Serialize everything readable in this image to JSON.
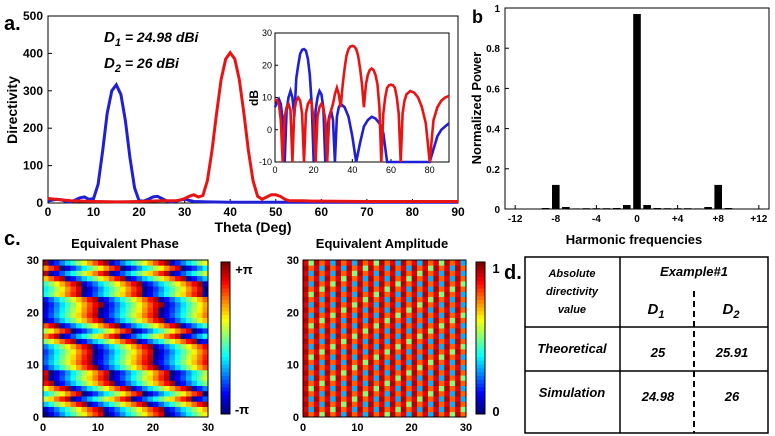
{
  "panel_labels": {
    "a": "a.",
    "b": "b",
    "c": "c.",
    "d": "d."
  },
  "colors": {
    "series1": "#1f1fd6",
    "series2": "#e81414",
    "bar": "#000000"
  },
  "chart_data": [
    {
      "id": "a",
      "type": "line",
      "title": "",
      "xlabel": "Theta (Deg)",
      "ylabel": "Directivity",
      "xlim": [
        0,
        90
      ],
      "ylim": [
        0,
        500
      ],
      "xticks": [
        "0",
        "10",
        "20",
        "30",
        "40",
        "50",
        "60",
        "70",
        "80",
        "90"
      ],
      "yticks": [
        "0",
        "100",
        "200",
        "300",
        "400",
        "500"
      ],
      "annotations": {
        "d1_sym": "D",
        "d1_sub": "1",
        "d1_val": " = 24.98 dBi",
        "d2_sym": "D",
        "d2_sub": "2",
        "d2_val": " = 26 dBi"
      },
      "series": [
        {
          "name": "D1",
          "color": "#1f1fd6",
          "x": [
            0,
            1,
            2,
            3,
            4,
            5,
            6,
            7,
            8,
            9,
            10,
            11,
            12,
            13,
            14,
            15,
            16,
            17,
            18,
            19,
            20,
            21,
            22,
            23,
            24,
            25,
            26,
            27,
            28,
            30,
            32,
            35,
            40,
            50,
            60,
            70,
            80,
            90
          ],
          "y": [
            5,
            8,
            10,
            8,
            4,
            3,
            8,
            14,
            16,
            10,
            12,
            50,
            140,
            240,
            300,
            316,
            290,
            220,
            120,
            40,
            6,
            5,
            10,
            16,
            18,
            12,
            6,
            3,
            5,
            10,
            4,
            3,
            2,
            2,
            2,
            2,
            2,
            2
          ]
        },
        {
          "name": "D2",
          "color": "#e81414",
          "x": [
            0,
            5,
            10,
            15,
            20,
            25,
            28,
            29,
            30,
            31,
            32,
            33,
            34,
            35,
            36,
            37,
            38,
            39,
            40,
            41,
            42,
            43,
            44,
            45,
            46,
            47,
            48,
            49,
            50,
            51,
            52,
            53,
            54,
            56,
            58,
            60,
            70,
            80,
            90
          ],
          "y": [
            12,
            6,
            4,
            3,
            4,
            6,
            6,
            8,
            12,
            18,
            22,
            16,
            20,
            60,
            140,
            240,
            330,
            385,
            402,
            385,
            330,
            240,
            140,
            60,
            18,
            10,
            16,
            22,
            22,
            18,
            10,
            6,
            6,
            6,
            5,
            5,
            4,
            4,
            4
          ]
        }
      ]
    },
    {
      "id": "a-inset",
      "type": "line",
      "ylabel": "dB",
      "xlim": [
        0,
        90
      ],
      "ylim": [
        -10,
        30
      ],
      "xticks": [
        "0",
        "20",
        "40",
        "60",
        "80"
      ],
      "yticks": [
        "-10",
        "0",
        "10",
        "20",
        "30"
      ],
      "series": [
        {
          "name": "D1",
          "color": "#1f1fd6",
          "x": [
            0,
            1,
            2,
            3,
            4,
            5,
            6,
            7,
            8,
            9,
            10,
            11,
            12,
            13,
            14,
            15,
            16,
            17,
            18,
            19,
            20,
            21,
            22,
            23,
            24,
            25,
            26,
            27,
            28,
            29,
            30,
            31,
            32,
            33,
            34,
            36,
            38,
            40,
            42,
            44,
            46,
            48,
            50,
            52,
            54,
            56,
            58,
            60,
            62,
            64,
            66,
            68,
            70,
            72,
            74,
            76,
            78,
            80,
            82,
            84,
            86,
            88,
            90
          ],
          "y": [
            7,
            8.5,
            9.5,
            8,
            3,
            -10,
            6,
            10,
            12,
            10,
            4,
            16,
            20,
            23.5,
            24.8,
            25,
            24.5,
            22,
            17,
            8,
            -10,
            6,
            10,
            12,
            11,
            7,
            -10,
            0,
            4,
            6,
            3,
            -10,
            4,
            7,
            8,
            7,
            4,
            -2,
            -10,
            -4,
            1,
            3,
            4,
            3.5,
            2,
            -1,
            -10,
            -10,
            -10,
            -10,
            -10,
            -10,
            -10,
            -10,
            -10,
            -10,
            -10,
            -10,
            -6,
            -2,
            0,
            1,
            2
          ]
        },
        {
          "name": "D2",
          "color": "#e81414",
          "x": [
            0,
            1,
            2,
            3,
            4,
            5,
            6,
            7,
            8,
            9,
            10,
            11,
            12,
            13,
            14,
            15,
            16,
            17,
            18,
            19,
            20,
            21,
            22,
            23,
            24,
            25,
            26,
            27,
            28,
            29,
            30,
            31,
            32,
            33,
            34,
            35,
            36,
            37,
            38,
            39,
            40,
            41,
            42,
            43,
            44,
            45,
            46,
            47,
            48,
            49,
            50,
            51,
            52,
            53,
            54,
            55,
            56,
            57,
            58,
            59,
            60,
            61,
            62,
            63,
            64,
            65,
            66,
            67,
            68,
            70,
            72,
            74,
            76,
            78,
            80,
            82,
            84,
            86,
            88,
            90
          ],
          "y": [
            9,
            9.3,
            8,
            3,
            -10,
            4,
            7,
            8,
            6,
            -10,
            6,
            9,
            10,
            9,
            5,
            -10,
            5,
            8,
            9,
            8,
            3,
            -10,
            4,
            7,
            8,
            7,
            3,
            -10,
            3,
            6,
            8,
            11,
            13,
            11,
            7,
            14,
            19,
            23,
            25,
            25.8,
            26,
            25.8,
            25,
            23,
            19,
            14,
            7,
            14,
            17,
            18.5,
            19,
            18.5,
            17,
            14,
            7,
            -10,
            5,
            10,
            13,
            13.8,
            14,
            13.8,
            13,
            10,
            5,
            -10,
            5,
            9,
            11,
            12,
            11.5,
            10,
            7,
            2,
            -10,
            3,
            7,
            9,
            10,
            10.5
          ]
        }
      ]
    },
    {
      "id": "b",
      "type": "bar",
      "xlabel": "Harmonic frequencies",
      "ylabel": "Normalized Power",
      "xlim": [
        -13,
        13
      ],
      "ylim": [
        0,
        1
      ],
      "xticks": [
        "-12",
        "-8",
        "-4",
        "0",
        "+4",
        "+8",
        "+12"
      ],
      "xtick_values": [
        -12,
        -8,
        -4,
        0,
        4,
        8,
        12
      ],
      "yticks": [
        "0",
        "0.2",
        "0.4",
        "0.6",
        "0.8",
        "1"
      ],
      "categories": [
        -12,
        -11,
        -10,
        -9,
        -8,
        -7,
        -6,
        -5,
        -4,
        -3,
        -2,
        -1,
        0,
        1,
        2,
        3,
        4,
        5,
        6,
        7,
        8,
        9,
        10,
        11,
        12
      ],
      "values": [
        0.001,
        0.002,
        0.002,
        0.005,
        0.12,
        0.01,
        0.003,
        0.004,
        0.004,
        0.004,
        0.005,
        0.02,
        0.97,
        0.02,
        0.005,
        0.004,
        0.004,
        0.004,
        0.003,
        0.01,
        0.12,
        0.005,
        0.002,
        0.002,
        0.001
      ]
    },
    {
      "id": "c-phase",
      "type": "heatmap",
      "title": "Equivalent Phase",
      "xlim": [
        0,
        30
      ],
      "ylim": [
        0,
        30
      ],
      "xticks": [
        "0",
        "10",
        "20",
        "30"
      ],
      "yticks": [
        "0",
        "10",
        "20",
        "30"
      ],
      "colorbar": [
        "+π",
        "-π"
      ],
      "grid_size": 30,
      "pattern": {
        "row_period": 7,
        "col_period": 11,
        "shift_per_row": 2
      }
    },
    {
      "id": "c-amplitude",
      "type": "heatmap",
      "title": "Equivalent Amplitude",
      "xlim": [
        0,
        30
      ],
      "ylim": [
        0,
        30
      ],
      "xticks": [
        "0",
        "10",
        "20",
        "30"
      ],
      "yticks": [
        "0",
        "10",
        "20",
        "30"
      ],
      "colorbar": [
        "1",
        "0"
      ],
      "grid_size": 30,
      "pattern": {
        "diagonal_period": 4
      }
    }
  ],
  "table": {
    "header_label": "Absolute directivity value",
    "header_lines": [
      "Absolute",
      "directivity",
      "value"
    ],
    "example": "Example#1",
    "col1_sym": "D",
    "col1_sub": "1",
    "col2_sym": "D",
    "col2_sub": "2",
    "rows": [
      {
        "label": "Theoretical",
        "v1": "25",
        "v2": "25.91"
      },
      {
        "label": "Simulation",
        "v1": "24.98",
        "v2": "26"
      }
    ]
  }
}
